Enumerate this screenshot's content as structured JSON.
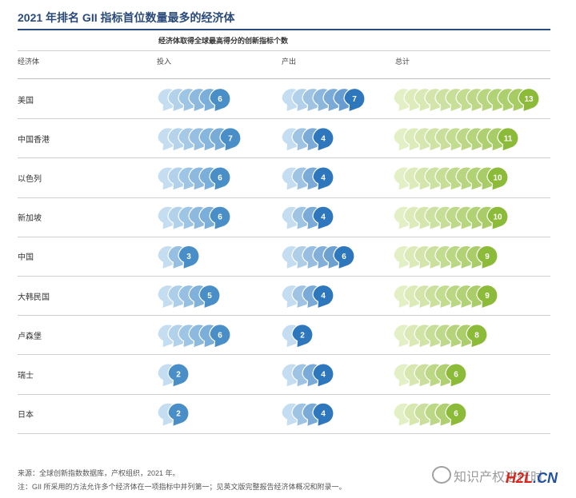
{
  "header": {
    "title": "2021 年排名 GII 指标首位数量最多的经济体",
    "subtitle": "经济体取得全球最高得分的创新指标个数"
  },
  "columns": {
    "economy": "经济体",
    "input": "投入",
    "output": "产出",
    "total": "总计"
  },
  "rows": [
    {
      "name": "美国"
    },
    {
      "name": "中国香港"
    },
    {
      "name": "以色列"
    },
    {
      "name": "新加坡"
    },
    {
      "name": "中国"
    },
    {
      "name": "大韩民国"
    },
    {
      "name": "卢森堡"
    },
    {
      "name": "瑞士"
    },
    {
      "name": "日本"
    }
  ],
  "colors": {
    "input_light": "#c4ddf0",
    "input_dark": "#4a8ec8",
    "output_light": "#c4ddf0",
    "output_dark": "#2f77bd",
    "total_light": "#e3efc4",
    "total_dark": "#8cbb3a"
  },
  "chart_data": {
    "type": "table",
    "title": "2021 年排名 GII 指标首位数量最多的经济体",
    "subtitle": "经济体取得全球最高得分的创新指标个数",
    "categories": [
      "美国",
      "中国香港",
      "以色列",
      "新加坡",
      "中国",
      "大韩民国",
      "卢森堡",
      "瑞士",
      "日本"
    ],
    "series": [
      {
        "name": "投入",
        "values": [
          6,
          7,
          6,
          6,
          3,
          5,
          6,
          2,
          2
        ]
      },
      {
        "name": "产出",
        "values": [
          7,
          4,
          4,
          4,
          6,
          4,
          2,
          4,
          4
        ]
      },
      {
        "name": "总计",
        "values": [
          13,
          11,
          10,
          10,
          9,
          9,
          8,
          6,
          6
        ]
      }
    ]
  },
  "footer": {
    "source": "来源：全球创新指数数据库，产权组织，2021 年。",
    "note": "注：GII 所采用的方法允许多个经济体在一项指标中并列第一；见英文版完整报告经济体概况和附录一。"
  },
  "watermark": {
    "text": "知识产权进行时",
    "logo_h2l": "H2L",
    "logo_cn": ".CN"
  }
}
